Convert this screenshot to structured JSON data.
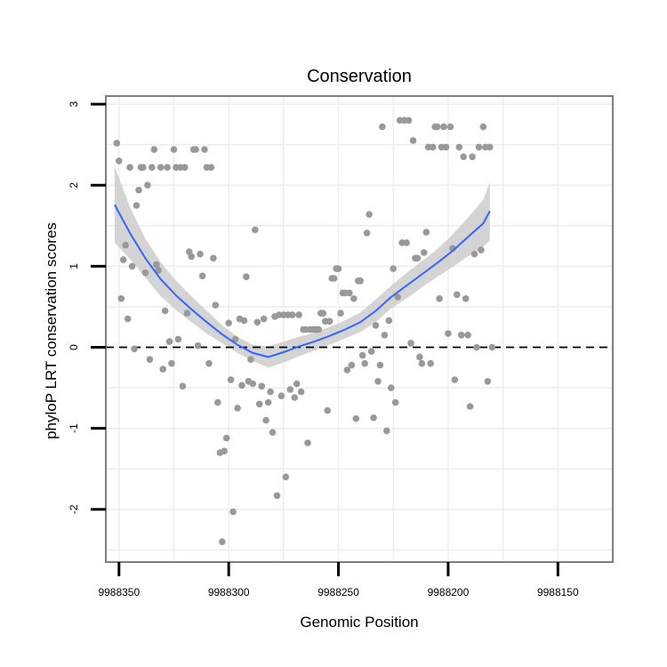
{
  "chart_data": {
    "type": "scatter",
    "title": "Conservation",
    "xlabel": "Genomic Position",
    "ylabel": "phyloP LRT conservation scores",
    "x_reversed": true,
    "xlim": [
      9988356,
      9988125
    ],
    "ylim": [
      -2.65,
      3.1
    ],
    "xticks": [
      9988350,
      9988300,
      9988250,
      9988200,
      9988150
    ],
    "xtick_labels": [
      "9988350",
      "9988300",
      "9988250",
      "9988200",
      "9988150"
    ],
    "yticks": [
      -2,
      -1,
      0,
      1,
      2,
      3
    ],
    "ytick_labels": [
      "-2",
      "-1",
      "0",
      "1",
      "2",
      "3"
    ],
    "reference_line": {
      "y": 0,
      "style": "dashed"
    },
    "grid": true,
    "colors": {
      "points": "#999999",
      "smooth_line": "#3366FF",
      "ribbon": "#CCCCCC",
      "panel_border": "#7F7F7F",
      "grid": "#EEEEEE",
      "reference_line": "#000000"
    },
    "points": [
      [
        9988351,
        2.52
      ],
      [
        9988350,
        2.3
      ],
      [
        9988349,
        0.6
      ],
      [
        9988348,
        1.08
      ],
      [
        9988347,
        1.26
      ],
      [
        9988346,
        0.35
      ],
      [
        9988345,
        2.22
      ],
      [
        9988344,
        1.0
      ],
      [
        9988343,
        -0.02
      ],
      [
        9988342,
        1.75
      ],
      [
        9988341,
        1.94
      ],
      [
        9988340,
        2.22
      ],
      [
        9988339,
        2.22
      ],
      [
        9988338,
        0.92
      ],
      [
        9988337,
        2.0
      ],
      [
        9988336,
        -0.15
      ],
      [
        9988335,
        2.22
      ],
      [
        9988334,
        2.44
      ],
      [
        9988333,
        1.02
      ],
      [
        9988332,
        0.95
      ],
      [
        9988331,
        2.22
      ],
      [
        9988330,
        -0.27
      ],
      [
        9988329,
        0.45
      ],
      [
        9988328,
        2.22
      ],
      [
        9988327,
        0.07
      ],
      [
        9988326,
        -0.2
      ],
      [
        9988325,
        2.44
      ],
      [
        9988324,
        2.22
      ],
      [
        9988323,
        0.1
      ],
      [
        9988322,
        2.22
      ],
      [
        9988321,
        -0.48
      ],
      [
        9988320,
        2.22
      ],
      [
        9988319,
        0.42
      ],
      [
        9988318,
        1.18
      ],
      [
        9988317,
        1.12
      ],
      [
        9988316,
        2.44
      ],
      [
        9988315,
        2.44
      ],
      [
        9988314,
        0.02
      ],
      [
        9988313,
        1.15
      ],
      [
        9988312,
        0.88
      ],
      [
        9988311,
        2.44
      ],
      [
        9988310,
        2.22
      ],
      [
        9988309,
        -0.2
      ],
      [
        9988308,
        2.22
      ],
      [
        9988307,
        1.1
      ],
      [
        9988306,
        0.52
      ],
      [
        9988305,
        -0.68
      ],
      [
        9988304,
        -1.3
      ],
      [
        9988303,
        -2.4
      ],
      [
        9988302,
        -1.28
      ],
      [
        9988301,
        -1.12
      ],
      [
        9988300,
        0.3
      ],
      [
        9988299,
        -0.4
      ],
      [
        9988298,
        -2.03
      ],
      [
        9988297,
        0.1
      ],
      [
        9988296,
        -0.75
      ],
      [
        9988295,
        0.35
      ],
      [
        9988294,
        -0.47
      ],
      [
        9988293,
        0.33
      ],
      [
        9988292,
        0.87
      ],
      [
        9988291,
        -0.42
      ],
      [
        9988290,
        -0.15
      ],
      [
        9988289,
        -0.45
      ],
      [
        9988288,
        1.45
      ],
      [
        9988287,
        0.31
      ],
      [
        9988286,
        -0.7
      ],
      [
        9988285,
        -0.48
      ],
      [
        9988284,
        0.35
      ],
      [
        9988283,
        -0.9
      ],
      [
        9988282,
        -0.68
      ],
      [
        9988281,
        -0.55
      ],
      [
        9988280,
        -1.05
      ],
      [
        9988279,
        0.38
      ],
      [
        9988278,
        -1.83
      ],
      [
        9988277,
        0.4
      ],
      [
        9988276,
        -0.6
      ],
      [
        9988275,
        0.4
      ],
      [
        9988274,
        -1.6
      ],
      [
        9988273,
        0.4
      ],
      [
        9988272,
        -0.52
      ],
      [
        9988271,
        0.4
      ],
      [
        9988270,
        -0.62
      ],
      [
        9988269,
        -0.45
      ],
      [
        9988268,
        0.4
      ],
      [
        9988267,
        -0.55
      ],
      [
        9988266,
        0.22
      ],
      [
        9988265,
        0.22
      ],
      [
        9988264,
        -1.18
      ],
      [
        9988263,
        0.22
      ],
      [
        9988262,
        0.22
      ],
      [
        9988261,
        0.22
      ],
      [
        9988260,
        0.22
      ],
      [
        9988259,
        0.22
      ],
      [
        9988258,
        0.42
      ],
      [
        9988257,
        0.42
      ],
      [
        9988256,
        0.32
      ],
      [
        9988255,
        -0.78
      ],
      [
        9988254,
        0.32
      ],
      [
        9988253,
        0.85
      ],
      [
        9988252,
        0.85
      ],
      [
        9988251,
        0.97
      ],
      [
        9988250,
        0.97
      ],
      [
        9988249,
        0.42
      ],
      [
        9988248,
        0.67
      ],
      [
        9988247,
        0.67
      ],
      [
        9988246,
        -0.28
      ],
      [
        9988245,
        0.67
      ],
      [
        9988244,
        -0.22
      ],
      [
        9988243,
        0.6
      ],
      [
        9988242,
        -0.88
      ],
      [
        9988241,
        0.82
      ],
      [
        9988240,
        0.82
      ],
      [
        9988239,
        -0.1
      ],
      [
        9988238,
        -0.2
      ],
      [
        9988237,
        1.41
      ],
      [
        9988236,
        1.64
      ],
      [
        9988235,
        -0.05
      ],
      [
        9988234,
        -0.87
      ],
      [
        9988233,
        0.27
      ],
      [
        9988232,
        -0.42
      ],
      [
        9988231,
        -0.22
      ],
      [
        9988230,
        2.72
      ],
      [
        9988229,
        0.15
      ],
      [
        9988228,
        -1.03
      ],
      [
        9988227,
        0.33
      ],
      [
        9988226,
        -0.5
      ],
      [
        9988225,
        0.97
      ],
      [
        9988224,
        -0.68
      ],
      [
        9988223,
        0.62
      ],
      [
        9988222,
        2.8
      ],
      [
        9988221,
        1.29
      ],
      [
        9988220,
        2.8
      ],
      [
        9988219,
        1.29
      ],
      [
        9988218,
        2.8
      ],
      [
        9988217,
        0.05
      ],
      [
        9988216,
        2.55
      ],
      [
        9988215,
        1.1
      ],
      [
        9988214,
        1.1
      ],
      [
        9988213,
        -0.12
      ],
      [
        9988212,
        -0.2
      ],
      [
        9988211,
        1.17
      ],
      [
        9988210,
        1.42
      ],
      [
        9988209,
        2.47
      ],
      [
        9988208,
        -0.2
      ],
      [
        9988207,
        2.47
      ],
      [
        9988206,
        2.72
      ],
      [
        9988205,
        2.72
      ],
      [
        9988204,
        0.6
      ],
      [
        9988203,
        2.47
      ],
      [
        9988202,
        2.72
      ],
      [
        9988201,
        2.47
      ],
      [
        9988200,
        0.17
      ],
      [
        9988199,
        2.72
      ],
      [
        9988198,
        1.22
      ],
      [
        9988197,
        -0.4
      ],
      [
        9988196,
        0.65
      ],
      [
        9988195,
        2.47
      ],
      [
        9988194,
        0.15
      ],
      [
        9988193,
        2.35
      ],
      [
        9988192,
        0.6
      ],
      [
        9988191,
        0.15
      ],
      [
        9988190,
        -0.73
      ],
      [
        9988189,
        2.35
      ],
      [
        9988188,
        1.15
      ],
      [
        9988187,
        0.0
      ],
      [
        9988186,
        2.47
      ],
      [
        9988185,
        1.2
      ],
      [
        9988184,
        2.72
      ],
      [
        9988183,
        2.47
      ],
      [
        9988182,
        -0.42
      ],
      [
        9988181,
        2.47
      ],
      [
        9988180,
        0.0
      ]
    ],
    "smooth": {
      "x": [
        9988352,
        9988345,
        9988338,
        9988331,
        9988324,
        9988317,
        9988310,
        9988303,
        9988296,
        9988289,
        9988282,
        9988275,
        9988268,
        9988261,
        9988254,
        9988247,
        9988240,
        9988233,
        9988226,
        9988219,
        9988212,
        9988205,
        9988198,
        9988191,
        9988184,
        9988181
      ],
      "y": [
        1.76,
        1.41,
        1.1,
        0.84,
        0.64,
        0.47,
        0.31,
        0.16,
        0.03,
        -0.07,
        -0.12,
        -0.06,
        0.01,
        0.07,
        0.14,
        0.22,
        0.31,
        0.45,
        0.62,
        0.76,
        0.9,
        1.04,
        1.19,
        1.36,
        1.53,
        1.68
      ],
      "lower": [
        1.29,
        1.09,
        0.86,
        0.63,
        0.46,
        0.31,
        0.17,
        0.05,
        -0.07,
        -0.17,
        -0.25,
        -0.19,
        -0.11,
        -0.04,
        0.03,
        0.11,
        0.19,
        0.31,
        0.48,
        0.6,
        0.74,
        0.87,
        0.99,
        1.12,
        1.24,
        1.32
      ],
      "upper": [
        2.23,
        1.73,
        1.34,
        1.05,
        0.82,
        0.63,
        0.45,
        0.27,
        0.13,
        0.03,
        0.01,
        0.07,
        0.13,
        0.18,
        0.25,
        0.33,
        0.43,
        0.59,
        0.76,
        0.92,
        1.06,
        1.21,
        1.39,
        1.6,
        1.82,
        2.04
      ]
    }
  }
}
